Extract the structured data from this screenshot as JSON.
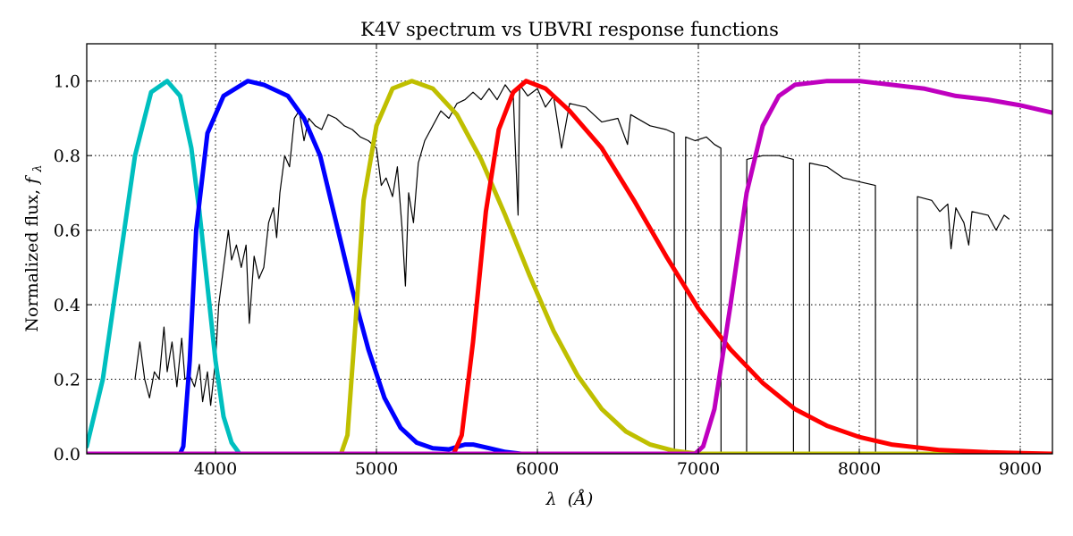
{
  "chart_data": {
    "type": "line",
    "title": "K4V spectrum vs UBVRI response functions",
    "xlabel_symbol": "λ",
    "xlabel_unit": "(Å)",
    "ylabel_text": "Normalized flux,  ",
    "ylabel_symbol": "f",
    "ylabel_subscript": "λ",
    "xlim": [
      3200,
      9200
    ],
    "ylim": [
      0,
      1.1
    ],
    "xticks": [
      4000,
      5000,
      6000,
      7000,
      8000,
      9000
    ],
    "xtick_labels": [
      "4000",
      "5000",
      "6000",
      "7000",
      "8000",
      "9000"
    ],
    "yticks": [
      0.0,
      0.2,
      0.4,
      0.6,
      0.8,
      1.0
    ],
    "ytick_labels": [
      "0.0",
      "0.2",
      "0.4",
      "0.6",
      "0.8",
      "1.0"
    ],
    "grid": true,
    "series": [
      {
        "color": "#000000",
        "kind": "spectrum",
        "points": [
          [
            3500,
            0.2
          ],
          [
            3530,
            0.3
          ],
          [
            3560,
            0.2
          ],
          [
            3590,
            0.15
          ],
          [
            3620,
            0.22
          ],
          [
            3650,
            0.2
          ],
          [
            3680,
            0.34
          ],
          [
            3700,
            0.22
          ],
          [
            3730,
            0.3
          ],
          [
            3760,
            0.18
          ],
          [
            3790,
            0.31
          ],
          [
            3810,
            0.2
          ],
          [
            3840,
            0.21
          ],
          [
            3870,
            0.18
          ],
          [
            3900,
            0.24
          ],
          [
            3920,
            0.14
          ],
          [
            3950,
            0.22
          ],
          [
            3970,
            0.13
          ],
          [
            4000,
            0.25
          ],
          [
            4020,
            0.4
          ],
          [
            4050,
            0.5
          ],
          [
            4080,
            0.6
          ],
          [
            4100,
            0.52
          ],
          [
            4130,
            0.56
          ],
          [
            4160,
            0.5
          ],
          [
            4190,
            0.56
          ],
          [
            4210,
            0.35
          ],
          [
            4240,
            0.53
          ],
          [
            4270,
            0.47
          ],
          [
            4300,
            0.5
          ],
          [
            4330,
            0.62
          ],
          [
            4360,
            0.66
          ],
          [
            4380,
            0.58
          ],
          [
            4400,
            0.7
          ],
          [
            4430,
            0.8
          ],
          [
            4460,
            0.77
          ],
          [
            4490,
            0.9
          ],
          [
            4520,
            0.92
          ],
          [
            4550,
            0.84
          ],
          [
            4580,
            0.9
          ],
          [
            4620,
            0.88
          ],
          [
            4660,
            0.87
          ],
          [
            4700,
            0.91
          ],
          [
            4750,
            0.9
          ],
          [
            4800,
            0.88
          ],
          [
            4850,
            0.87
          ],
          [
            4900,
            0.85
          ],
          [
            4950,
            0.84
          ],
          [
            5000,
            0.82
          ],
          [
            5030,
            0.72
          ],
          [
            5060,
            0.74
          ],
          [
            5100,
            0.69
          ],
          [
            5130,
            0.77
          ],
          [
            5160,
            0.6
          ],
          [
            5180,
            0.45
          ],
          [
            5200,
            0.7
          ],
          [
            5230,
            0.62
          ],
          [
            5260,
            0.78
          ],
          [
            5300,
            0.84
          ],
          [
            5350,
            0.88
          ],
          [
            5400,
            0.92
          ],
          [
            5450,
            0.9
          ],
          [
            5500,
            0.94
          ],
          [
            5550,
            0.95
          ],
          [
            5600,
            0.97
          ],
          [
            5650,
            0.95
          ],
          [
            5700,
            0.98
          ],
          [
            5750,
            0.95
          ],
          [
            5800,
            0.99
          ],
          [
            5850,
            0.96
          ],
          [
            5880,
            0.64
          ],
          [
            5890,
            0.99
          ],
          [
            5940,
            0.96
          ],
          [
            6000,
            0.98
          ],
          [
            6050,
            0.93
          ],
          [
            6100,
            0.96
          ],
          [
            6150,
            0.82
          ],
          [
            6200,
            0.94
          ],
          [
            6300,
            0.93
          ],
          [
            6400,
            0.89
          ],
          [
            6500,
            0.9
          ],
          [
            6560,
            0.83
          ],
          [
            6580,
            0.91
          ],
          [
            6700,
            0.88
          ],
          [
            6800,
            0.87
          ],
          [
            6850,
            0.86
          ],
          [
            6851,
            0.0
          ],
          [
            6920,
            0.0
          ],
          [
            6921,
            0.85
          ],
          [
            6980,
            0.84
          ],
          [
            7050,
            0.85
          ],
          [
            7100,
            0.83
          ],
          [
            7140,
            0.82
          ],
          [
            7141,
            0.0
          ],
          [
            7300,
            0.0
          ],
          [
            7301,
            0.79
          ],
          [
            7400,
            0.8
          ],
          [
            7500,
            0.8
          ],
          [
            7590,
            0.79
          ],
          [
            7591,
            0.0
          ],
          [
            7690,
            0.0
          ],
          [
            7691,
            0.78
          ],
          [
            7800,
            0.77
          ],
          [
            7900,
            0.74
          ],
          [
            8000,
            0.73
          ],
          [
            8100,
            0.72
          ],
          [
            8101,
            0.0
          ],
          [
            8360,
            0.0
          ],
          [
            8361,
            0.69
          ],
          [
            8450,
            0.68
          ],
          [
            8500,
            0.65
          ],
          [
            8550,
            0.67
          ],
          [
            8570,
            0.55
          ],
          [
            8600,
            0.66
          ],
          [
            8650,
            0.62
          ],
          [
            8680,
            0.56
          ],
          [
            8700,
            0.65
          ],
          [
            8800,
            0.64
          ],
          [
            8850,
            0.6
          ],
          [
            8900,
            0.64
          ],
          [
            8930,
            0.63
          ]
        ]
      },
      {
        "color": "#00BFBF",
        "kind": "filter",
        "points": [
          [
            3200,
            0.02
          ],
          [
            3300,
            0.2
          ],
          [
            3400,
            0.5
          ],
          [
            3500,
            0.8
          ],
          [
            3600,
            0.97
          ],
          [
            3700,
            1.0
          ],
          [
            3780,
            0.96
          ],
          [
            3850,
            0.82
          ],
          [
            3900,
            0.65
          ],
          [
            3950,
            0.45
          ],
          [
            4000,
            0.25
          ],
          [
            4050,
            0.1
          ],
          [
            4100,
            0.03
          ],
          [
            4150,
            0.0
          ],
          [
            9200,
            0.0
          ]
        ]
      },
      {
        "color": "#0000FF",
        "kind": "filter",
        "points": [
          [
            3200,
            0.0
          ],
          [
            3780,
            0.0
          ],
          [
            3800,
            0.02
          ],
          [
            3840,
            0.25
          ],
          [
            3880,
            0.6
          ],
          [
            3950,
            0.86
          ],
          [
            4050,
            0.96
          ],
          [
            4200,
            1.0
          ],
          [
            4300,
            0.99
          ],
          [
            4450,
            0.96
          ],
          [
            4550,
            0.9
          ],
          [
            4650,
            0.8
          ],
          [
            4750,
            0.62
          ],
          [
            4850,
            0.44
          ],
          [
            4950,
            0.28
          ],
          [
            5050,
            0.15
          ],
          [
            5150,
            0.07
          ],
          [
            5250,
            0.03
          ],
          [
            5350,
            0.015
          ],
          [
            5450,
            0.012
          ],
          [
            5550,
            0.025
          ],
          [
            5600,
            0.025
          ],
          [
            5700,
            0.015
          ],
          [
            5800,
            0.005
          ],
          [
            5900,
            0.0
          ],
          [
            9200,
            0.0
          ]
        ]
      },
      {
        "color": "#BFBF00",
        "kind": "filter",
        "points": [
          [
            3200,
            0.0
          ],
          [
            4780,
            0.0
          ],
          [
            4820,
            0.05
          ],
          [
            4870,
            0.35
          ],
          [
            4920,
            0.68
          ],
          [
            5000,
            0.88
          ],
          [
            5100,
            0.98
          ],
          [
            5220,
            1.0
          ],
          [
            5350,
            0.98
          ],
          [
            5500,
            0.91
          ],
          [
            5650,
            0.79
          ],
          [
            5800,
            0.64
          ],
          [
            5950,
            0.48
          ],
          [
            6100,
            0.33
          ],
          [
            6250,
            0.21
          ],
          [
            6400,
            0.12
          ],
          [
            6550,
            0.06
          ],
          [
            6700,
            0.025
          ],
          [
            6850,
            0.008
          ],
          [
            7000,
            0.0
          ],
          [
            9200,
            0.0
          ]
        ]
      },
      {
        "color": "#FF0000",
        "kind": "filter",
        "points": [
          [
            3200,
            0.0
          ],
          [
            5480,
            0.0
          ],
          [
            5530,
            0.05
          ],
          [
            5600,
            0.3
          ],
          [
            5680,
            0.65
          ],
          [
            5760,
            0.87
          ],
          [
            5850,
            0.97
          ],
          [
            5930,
            1.0
          ],
          [
            6050,
            0.98
          ],
          [
            6200,
            0.92
          ],
          [
            6400,
            0.82
          ],
          [
            6600,
            0.68
          ],
          [
            6800,
            0.53
          ],
          [
            7000,
            0.39
          ],
          [
            7200,
            0.28
          ],
          [
            7400,
            0.19
          ],
          [
            7600,
            0.12
          ],
          [
            7800,
            0.075
          ],
          [
            8000,
            0.045
          ],
          [
            8200,
            0.025
          ],
          [
            8500,
            0.01
          ],
          [
            8800,
            0.004
          ],
          [
            9200,
            0.0
          ]
        ]
      },
      {
        "color": "#BF00BF",
        "kind": "filter",
        "points": [
          [
            3200,
            0.0
          ],
          [
            6980,
            0.0
          ],
          [
            7030,
            0.02
          ],
          [
            7100,
            0.12
          ],
          [
            7200,
            0.4
          ],
          [
            7300,
            0.7
          ],
          [
            7400,
            0.88
          ],
          [
            7500,
            0.96
          ],
          [
            7600,
            0.99
          ],
          [
            7800,
            1.0
          ],
          [
            8000,
            1.0
          ],
          [
            8200,
            0.99
          ],
          [
            8400,
            0.98
          ],
          [
            8600,
            0.96
          ],
          [
            8800,
            0.95
          ],
          [
            9000,
            0.935
          ],
          [
            9200,
            0.915
          ]
        ]
      }
    ]
  }
}
